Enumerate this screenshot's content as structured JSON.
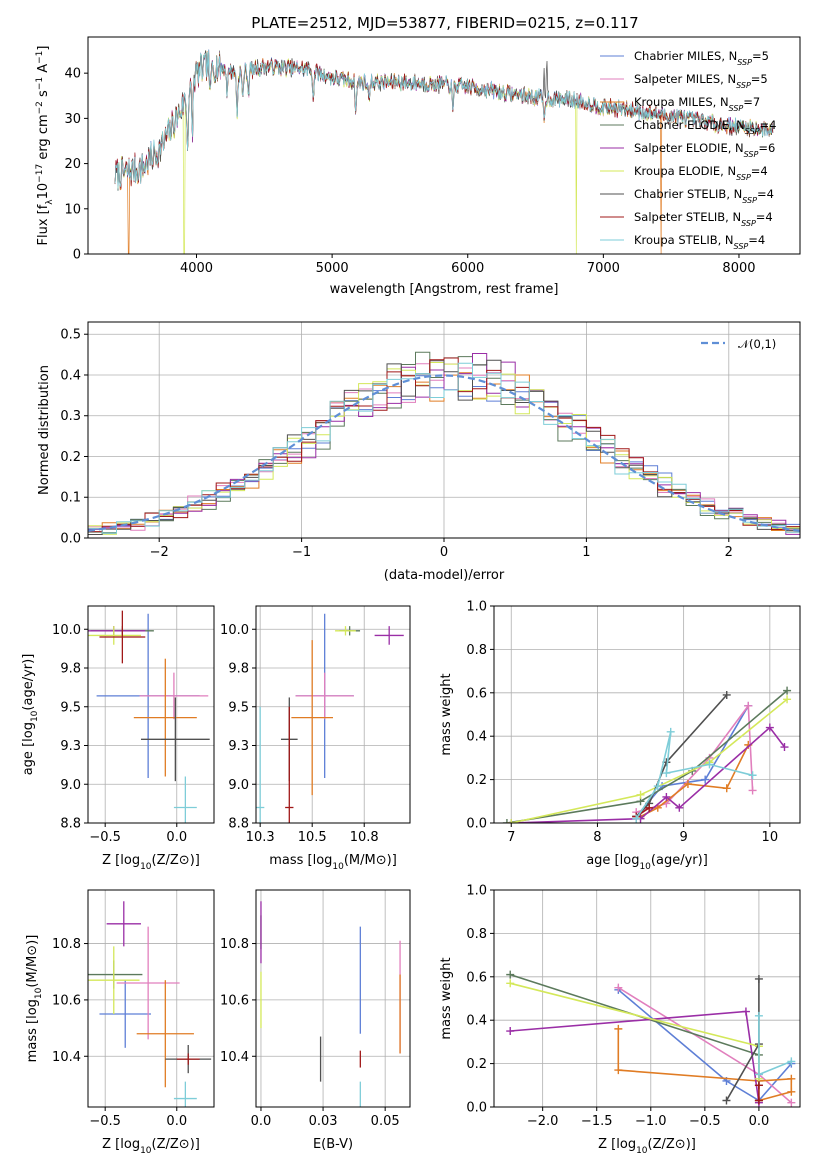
{
  "figure": {
    "title": "PLATE=2512, MJD=53877, FIBERID=0215, z=0.117"
  },
  "series": [
    {
      "name": "Chabrier MILES, N_SSP=5",
      "color": "#5e7fd6",
      "n": 5
    },
    {
      "name": "Salpeter MILES, N_SSP=5",
      "color": "#e17fbd",
      "n": 5
    },
    {
      "name": "Kroupa MILES, N_SSP=7",
      "color": "#e07c24",
      "n": 7
    },
    {
      "name": "Chabrier ELODIE, N_SSP=4",
      "color": "#5c7a5c",
      "n": 4
    },
    {
      "name": "Salpeter ELODIE, N_SSP=6",
      "color": "#9a2ea6",
      "n": 6
    },
    {
      "name": "Kroupa ELODIE, N_SSP=4",
      "color": "#d4e85a",
      "n": 4
    },
    {
      "name": "Chabrier STELIB, N_SSP=4",
      "color": "#505050",
      "n": 4
    },
    {
      "name": "Salpeter STELIB, N_SSP=4",
      "color": "#a01818",
      "n": 4
    },
    {
      "name": "Kroupa STELIB, N_SSP=4",
      "color": "#7ecdd8",
      "n": 4
    }
  ],
  "chart_data": [
    {
      "id": "spectrum",
      "type": "line",
      "xlabel": "wavelength [Angstrom, rest frame]",
      "ylabel": "Flux [f_λ 10^-17 erg cm^-2 s^-1 A^-1]",
      "xlim": [
        3200,
        8450
      ],
      "ylim": [
        0,
        48
      ],
      "xticks": [
        4000,
        5000,
        6000,
        7000,
        8000
      ],
      "yticks": [
        0,
        10,
        20,
        30,
        40
      ],
      "legend": "top-right",
      "continuum": [
        [
          3400,
          17.5
        ],
        [
          3600,
          19
        ],
        [
          3750,
          24
        ],
        [
          3900,
          33
        ],
        [
          4000,
          40
        ],
        [
          4100,
          42
        ],
        [
          4300,
          40
        ],
        [
          4500,
          41.5
        ],
        [
          4800,
          41
        ],
        [
          5000,
          39
        ],
        [
          5200,
          38
        ],
        [
          5500,
          38
        ],
        [
          5800,
          37.5
        ],
        [
          6000,
          37
        ],
        [
          6300,
          35.5
        ],
        [
          6550,
          34.5
        ],
        [
          6800,
          34
        ],
        [
          7000,
          32.5
        ],
        [
          7300,
          31.5
        ],
        [
          7600,
          30
        ],
        [
          8000,
          28
        ],
        [
          8250,
          27.5
        ]
      ],
      "absorption": [
        [
          3934,
          12
        ],
        [
          3969,
          12
        ],
        [
          4102,
          8
        ],
        [
          4226,
          5
        ],
        [
          4300,
          9
        ],
        [
          4340,
          6
        ],
        [
          4383,
          5
        ],
        [
          4861,
          6
        ],
        [
          5175,
          7
        ],
        [
          5270,
          4
        ],
        [
          5890,
          6
        ],
        [
          6563,
          5
        ]
      ],
      "emission": [
        [
          6563,
          12
        ],
        [
          6583,
          10
        ]
      ],
      "dropouts": [
        [
          3500,
          "Kroupa MILES, N_SSP=7"
        ],
        [
          3910,
          "Kroupa ELODIE, N_SSP=4"
        ],
        [
          6800,
          "Kroupa ELODIE, N_SSP=4"
        ],
        [
          7425,
          "Kroupa MILES, N_SSP=7"
        ]
      ]
    },
    {
      "id": "residuals",
      "type": "step",
      "xlabel": "(data-model)/error",
      "ylabel": "Normed distribution",
      "xlim": [
        -2.5,
        2.5
      ],
      "ylim": [
        0,
        0.53
      ],
      "xticks": [
        -2,
        -1,
        0,
        1,
        2
      ],
      "yticks": [
        0.0,
        0.1,
        0.2,
        0.3,
        0.4,
        0.5
      ],
      "grid": true,
      "legend_label": "N(0,1)",
      "legend": "top-right",
      "bin_width": 0.1
    },
    {
      "id": "age-vs-Z",
      "type": "errorbar",
      "xlabel": "Z [log10(Z/Z⊙)]",
      "ylabel": "age [log10(age/yr)]",
      "xlim": [
        -0.62,
        0.26
      ],
      "ylim": [
        8.75,
        10.15
      ],
      "xticks": [
        -0.5,
        0.0
      ],
      "yticks": [
        8.75,
        9.0,
        9.25,
        9.5,
        9.75,
        10.0
      ],
      "grid": true,
      "points": [
        {
          "x": -0.2,
          "xe": 0.36,
          "y": 9.57,
          "ye": 0.53
        },
        {
          "x": -0.02,
          "xe": 0.24,
          "y": 9.57,
          "ye": 0.15
        },
        {
          "x": -0.08,
          "xe": 0.22,
          "y": 9.43,
          "ye": 0.38
        },
        {
          "x": -0.38,
          "xe": 0.22,
          "y": 9.99,
          "ye": 0.03
        },
        {
          "x": -0.44,
          "xe": 0.22,
          "y": 9.99,
          "ye": 0.03
        },
        {
          "x": -0.44,
          "xe": 0.19,
          "y": 9.96,
          "ye": 0.06
        },
        {
          "x": -0.01,
          "xe": 0.24,
          "y": 9.29,
          "ye": 0.27
        },
        {
          "x": -0.38,
          "xe": 0.16,
          "y": 9.95,
          "ye": 0.17
        },
        {
          "x": 0.06,
          "xe": 0.08,
          "y": 8.85,
          "ye": 0.2
        }
      ]
    },
    {
      "id": "age-vs-mass",
      "type": "errorbar",
      "xlabel": "mass [log10(M/M⊙)]",
      "ylabel": "",
      "xlim": [
        10.23,
        10.97
      ],
      "ylim": [
        8.75,
        10.15
      ],
      "xticks": [
        10.25,
        10.5,
        10.75
      ],
      "yticks": [
        8.75,
        9.0,
        9.25,
        9.5,
        9.75,
        10.0
      ],
      "grid": true,
      "points": [
        {
          "x": 10.56,
          "xe": 0.14,
          "y": 9.57,
          "ye": 0.53
        },
        {
          "x": 10.56,
          "xe": 0.14,
          "y": 9.57,
          "ye": 0.15
        },
        {
          "x": 10.5,
          "xe": 0.1,
          "y": 9.43,
          "ye": 0.5
        },
        {
          "x": 10.68,
          "xe": 0.05,
          "y": 9.99,
          "ye": 0.03
        },
        {
          "x": 10.87,
          "xe": 0.07,
          "y": 9.96,
          "ye": 0.06
        },
        {
          "x": 10.66,
          "xe": 0.05,
          "y": 9.99,
          "ye": 0.03
        },
        {
          "x": 10.39,
          "xe": 0.04,
          "y": 9.29,
          "ye": 0.27
        },
        {
          "x": 10.39,
          "xe": 0.02,
          "y": 8.85,
          "ye": 0.65
        },
        {
          "x": 10.25,
          "xe": 0.02,
          "y": 8.85,
          "ye": 0.65
        }
      ]
    },
    {
      "id": "massweight-vs-age",
      "type": "line",
      "xlabel": "age [log10(age/yr)]",
      "ylabel": "mass weight",
      "xlim": [
        6.8,
        10.35
      ],
      "ylim": [
        0,
        1.0
      ],
      "xticks": [
        7,
        8,
        9,
        10
      ],
      "yticks": [
        0.0,
        0.2,
        0.4,
        0.6,
        0.8,
        1.0
      ],
      "grid": true,
      "lines": [
        [
          [
            8.45,
            0.03
          ],
          [
            8.75,
            0.17
          ],
          [
            9.25,
            0.2
          ],
          [
            9.75,
            0.54
          ]
        ],
        [
          [
            8.45,
            0.05
          ],
          [
            8.8,
            0.09
          ],
          [
            9.3,
            0.3
          ],
          [
            9.75,
            0.54
          ],
          [
            9.8,
            0.15
          ]
        ],
        [
          [
            8.5,
            0.03
          ],
          [
            8.7,
            0.07
          ],
          [
            9.05,
            0.18
          ],
          [
            9.5,
            0.16
          ],
          [
            9.75,
            0.36
          ]
        ],
        [
          [
            6.95,
            0.0
          ],
          [
            8.5,
            0.1
          ],
          [
            9.1,
            0.24
          ],
          [
            10.2,
            0.61
          ]
        ],
        [
          [
            7.0,
            0.0
          ],
          [
            8.5,
            0.02
          ],
          [
            8.8,
            0.12
          ],
          [
            8.95,
            0.07
          ],
          [
            10.0,
            0.44
          ],
          [
            10.17,
            0.35
          ]
        ],
        [
          [
            7.0,
            0.0
          ],
          [
            8.5,
            0.13
          ],
          [
            9.3,
            0.28
          ],
          [
            10.2,
            0.57
          ]
        ],
        [
          [
            8.45,
            0.03
          ],
          [
            8.6,
            0.09
          ],
          [
            8.8,
            0.28
          ],
          [
            9.5,
            0.59
          ]
        ],
        [
          [
            8.45,
            0.03
          ],
          [
            8.6,
            0.07
          ]
        ],
        [
          [
            8.45,
            0.02
          ],
          [
            8.7,
            0.17
          ],
          [
            8.85,
            0.42
          ],
          [
            8.8,
            0.23
          ],
          [
            9.3,
            0.27
          ],
          [
            9.8,
            0.22
          ]
        ]
      ]
    },
    {
      "id": "mass-vs-Z",
      "type": "errorbar",
      "xlabel": "Z [log10(Z/Z⊙)]",
      "ylabel": "mass [log10(M/M⊙)]",
      "xlim": [
        -0.62,
        0.26
      ],
      "ylim": [
        10.22,
        10.99
      ],
      "xticks": [
        -0.5,
        0.0
      ],
      "yticks": [
        10.4,
        10.6,
        10.8
      ],
      "grid": true,
      "points": [
        {
          "x": -0.36,
          "xe": 0.18,
          "y": 10.55,
          "ye": 0.12
        },
        {
          "x": -0.2,
          "xe": 0.22,
          "y": 10.66,
          "ye": 0.2
        },
        {
          "x": -0.08,
          "xe": 0.2,
          "y": 10.48,
          "ye": 0.19
        },
        {
          "x": -0.44,
          "xe": 0.2,
          "y": 10.69,
          "ye": 0.05
        },
        {
          "x": -0.37,
          "xe": 0.12,
          "y": 10.87,
          "ye": 0.08
        },
        {
          "x": -0.44,
          "xe": 0.18,
          "y": 10.67,
          "ye": 0.12
        },
        {
          "x": 0.08,
          "xe": 0.16,
          "y": 10.39,
          "ye": 0.05
        },
        {
          "x": 0.08,
          "xe": 0.08,
          "y": 10.39,
          "ye": 0.02
        },
        {
          "x": 0.06,
          "xe": 0.08,
          "y": 10.25,
          "ye": 0.06
        }
      ]
    },
    {
      "id": "mass-vs-ebv",
      "type": "errorbar",
      "xlabel": "E(B-V)",
      "ylabel": "",
      "xlim": [
        -0.002,
        0.06
      ],
      "ylim": [
        10.22,
        10.99
      ],
      "xticks": [
        0.0,
        0.025,
        0.05
      ],
      "yticks": [
        10.4,
        10.6,
        10.8
      ],
      "grid": true,
      "points": [
        {
          "x": 0.04,
          "xe": 0,
          "y": 10.67,
          "ye": 0.19
        },
        {
          "x": 0.056,
          "xe": 0,
          "y": 10.61,
          "ye": 0.2
        },
        {
          "x": 0.056,
          "xe": 0,
          "y": 10.55,
          "ye": 0.14
        },
        {
          "x": 0.0,
          "xe": 0,
          "y": 10.84,
          "ye": 0.06
        },
        {
          "x": 0.0,
          "xe": 0,
          "y": 10.84,
          "ye": 0.11
        },
        {
          "x": 0.0,
          "xe": 0,
          "y": 10.6,
          "ye": 0.1
        },
        {
          "x": 0.024,
          "xe": 0,
          "y": 10.39,
          "ye": 0.08
        },
        {
          "x": 0.04,
          "xe": 0,
          "y": 10.39,
          "ye": 0.03
        },
        {
          "x": 0.04,
          "xe": 0,
          "y": 10.26,
          "ye": 0.05
        }
      ]
    },
    {
      "id": "massweight-vs-Z",
      "type": "line",
      "xlabel": "Z [log10(Z/Z⊙)]",
      "ylabel": "mass weight",
      "xlim": [
        -2.45,
        0.38
      ],
      "ylim": [
        0,
        1.0
      ],
      "xticks": [
        -2.0,
        -1.5,
        -1.0,
        -0.5,
        0.0
      ],
      "yticks": [
        0.0,
        0.2,
        0.4,
        0.6,
        0.8,
        1.0
      ],
      "grid": true,
      "lines": [
        [
          [
            -1.3,
            0.54
          ],
          [
            -0.3,
            0.12
          ],
          [
            0.0,
            0.03
          ],
          [
            0.3,
            0.2
          ]
        ],
        [
          [
            -1.3,
            0.55
          ],
          [
            0.0,
            0.15
          ],
          [
            0.3,
            0.02
          ]
        ],
        [
          [
            -1.3,
            0.36
          ],
          [
            -1.3,
            0.17
          ],
          [
            0.0,
            0.12
          ],
          [
            0.3,
            0.13
          ],
          [
            0.3,
            0.07
          ],
          [
            0.0,
            0.03
          ]
        ],
        [
          [
            -2.3,
            0.61
          ],
          [
            0.0,
            0.24
          ],
          [
            0.0,
            0.1
          ]
        ],
        [
          [
            -2.3,
            0.35
          ],
          [
            -0.12,
            0.44
          ],
          [
            0.0,
            0.02
          ]
        ],
        [
          [
            -2.3,
            0.57
          ],
          [
            0.0,
            0.28
          ],
          [
            0.0,
            0.13
          ]
        ],
        [
          [
            -0.3,
            0.03
          ],
          [
            0.0,
            0.29
          ],
          [
            0.0,
            0.59
          ]
        ],
        [
          [
            0.0,
            0.1
          ],
          [
            0.0,
            0.03
          ]
        ],
        [
          [
            0.0,
            0.42
          ],
          [
            0.0,
            0.15
          ],
          [
            0.3,
            0.21
          ]
        ]
      ]
    }
  ]
}
